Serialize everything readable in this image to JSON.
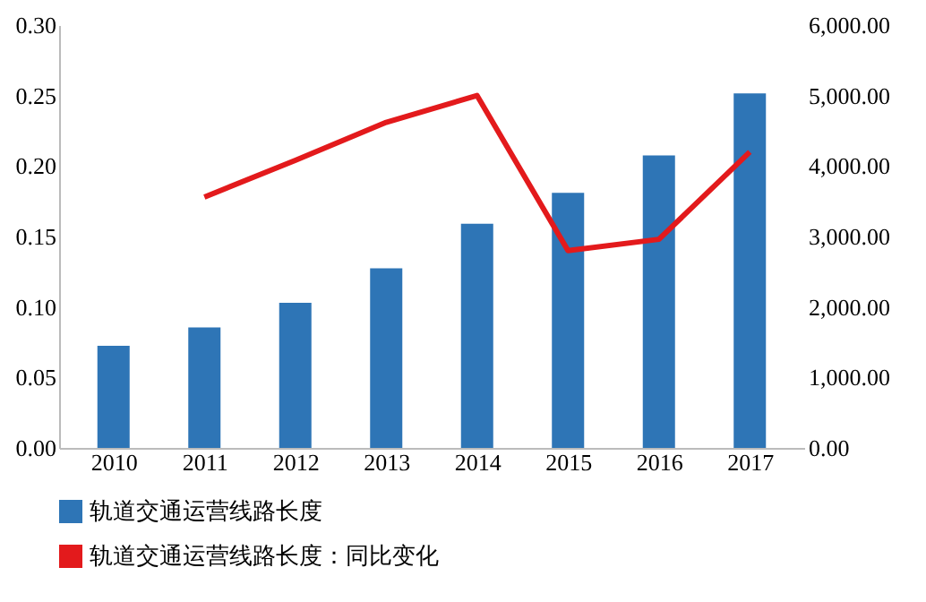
{
  "chart_data": {
    "type": "bar",
    "categories": [
      "2010",
      "2011",
      "2012",
      "2013",
      "2014",
      "2015",
      "2016",
      "2017"
    ],
    "series": [
      {
        "name": "轨道交通运营线路长度",
        "axis": "y2",
        "color": "#2e75b6",
        "values": [
          1450,
          1710,
          2060,
          2550,
          3180,
          3620,
          4150,
          5030
        ]
      },
      {
        "name": "轨道交通运营线路长度：同比变化",
        "type": "line",
        "axis": "y",
        "color": "#e31a1c",
        "values": [
          null,
          0.178,
          0.204,
          0.231,
          0.25,
          0.14,
          0.148,
          0.21
        ]
      }
    ],
    "ylim": [
      0,
      0.3
    ],
    "yticks": [
      {
        "value": 0,
        "label": "0.00"
      },
      {
        "value": 0.05,
        "label": "0.05"
      },
      {
        "value": 0.1,
        "label": "0.10"
      },
      {
        "value": 0.15,
        "label": "0.15"
      },
      {
        "value": 0.2,
        "label": "0.20"
      },
      {
        "value": 0.25,
        "label": "0.25"
      },
      {
        "value": 0.3,
        "label": "0.30"
      }
    ],
    "y2lim": [
      0,
      6000
    ],
    "y2ticks": [
      {
        "value": 0,
        "label": "0.00"
      },
      {
        "value": 1000,
        "label": "1,000.00"
      },
      {
        "value": 2000,
        "label": "2,000.00"
      },
      {
        "value": 3000,
        "label": "3,000.00"
      },
      {
        "value": 4000,
        "label": "4,000.00"
      },
      {
        "value": 5000,
        "label": "5,000.00"
      },
      {
        "value": 6000,
        "label": "6,000.00"
      }
    ],
    "grid": false,
    "legend": "bottom",
    "line_style": "solid",
    "marker": "none"
  }
}
